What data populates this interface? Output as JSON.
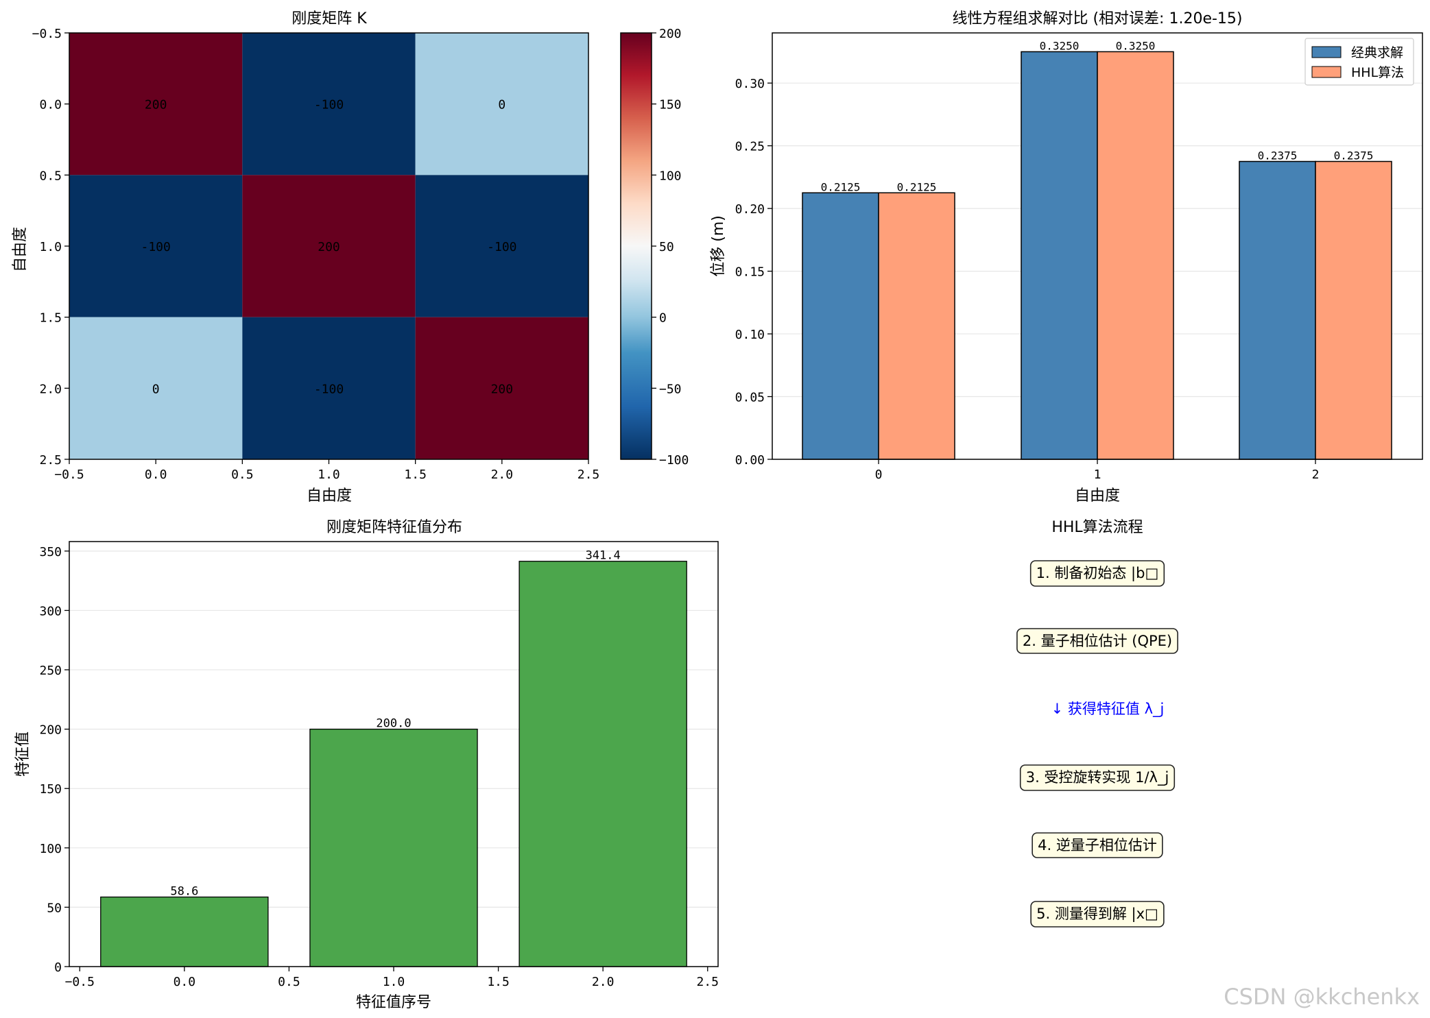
{
  "chart_data": [
    {
      "type": "heatmap",
      "title": "刚度矩阵 K",
      "xlabel": "自由度",
      "ylabel": "自由度",
      "matrix": [
        [
          200,
          -100,
          0
        ],
        [
          -100,
          200,
          -100
        ],
        [
          0,
          -100,
          200
        ]
      ],
      "cell_labels": [
        [
          "200",
          "-100",
          "0"
        ],
        [
          "-100",
          "200",
          "-100"
        ],
        [
          "0",
          "-100",
          "200"
        ]
      ],
      "xlim": [
        -0.5,
        2.5
      ],
      "ylim": [
        2.5,
        -0.5
      ],
      "xticks": [
        "−0.5",
        "0.0",
        "0.5",
        "1.0",
        "1.5",
        "2.0",
        "2.5"
      ],
      "yticks": [
        "−0.5",
        "0.0",
        "0.5",
        "1.0",
        "1.5",
        "2.0",
        "2.5"
      ],
      "colormap": "RdBu_r",
      "vmin": -100,
      "vmax": 200,
      "colorbar_ticks": [
        "200",
        "150",
        "100",
        "50",
        "0",
        "−50",
        "−100"
      ],
      "colors": {
        "high": "#67001f",
        "low": "#053061",
        "zero": "#a6cee3"
      }
    },
    {
      "type": "bar",
      "title": "线性方程组求解对比 (相对误差: 1.20e-15)",
      "xlabel": "自由度",
      "ylabel": "位移 (m)",
      "categories": [
        "0",
        "1",
        "2"
      ],
      "series": [
        {
          "name": "经典求解",
          "values": [
            0.2125,
            0.325,
            0.2375
          ],
          "labels": [
            "0.2125",
            "0.3250",
            "0.2375"
          ],
          "color": "#4682b4"
        },
        {
          "name": "HHL算法",
          "values": [
            0.2125,
            0.325,
            0.2375
          ],
          "labels": [
            "0.2125",
            "0.3250",
            "0.2375"
          ],
          "color": "#ffa07a"
        }
      ],
      "ylim": [
        0,
        0.34
      ],
      "yticks": [
        "0.00",
        "0.05",
        "0.10",
        "0.15",
        "0.20",
        "0.25",
        "0.30"
      ],
      "grid": "y",
      "legend": "top-right"
    },
    {
      "type": "bar",
      "title": "刚度矩阵特征值分布",
      "xlabel": "特征值序号",
      "ylabel": "特征值",
      "x": [
        0,
        1,
        2
      ],
      "values": [
        58.6,
        200.0,
        341.4
      ],
      "labels": [
        "58.6",
        "200.0",
        "341.4"
      ],
      "xlim": [
        -0.55,
        2.55
      ],
      "ylim": [
        0,
        358
      ],
      "xticks": [
        "−0.5",
        "0.0",
        "0.5",
        "1.0",
        "1.5",
        "2.0",
        "2.5"
      ],
      "yticks": [
        "0",
        "50",
        "100",
        "150",
        "200",
        "250",
        "300",
        "350"
      ],
      "color": "#4ca64c",
      "grid": "y"
    }
  ],
  "flow": {
    "title": "HHL算法流程",
    "steps": [
      {
        "text": "1. 制备初始态 |b□",
        "boxed": true
      },
      {
        "text": "2. 量子相位估计 (QPE)",
        "boxed": true
      },
      {
        "text": "↓ 获得特征值 λ_j",
        "boxed": false,
        "color": "#0000ff"
      },
      {
        "text": "3. 受控旋转实现 1/λ_j",
        "boxed": true
      },
      {
        "text": "4. 逆量子相位估计",
        "boxed": true
      },
      {
        "text": "5. 测量得到解 |x□",
        "boxed": true
      }
    ]
  },
  "watermark": "CSDN @kkchenkx"
}
